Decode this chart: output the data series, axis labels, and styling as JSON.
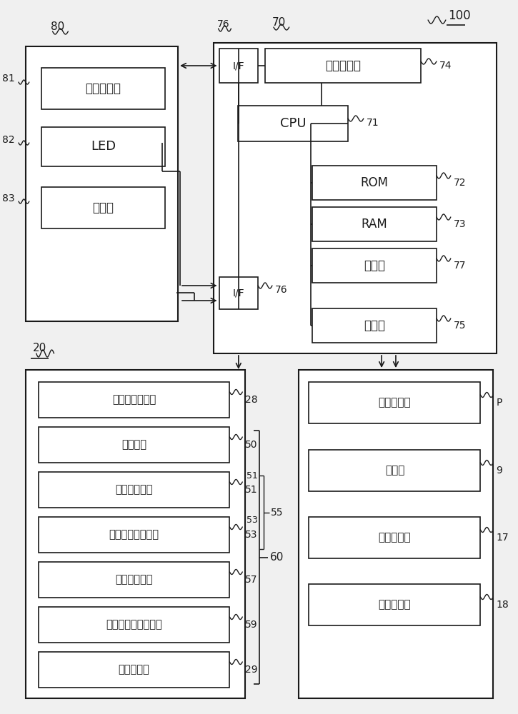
{
  "bg_color": "#f0f0f0",
  "box_color": "#ffffff",
  "box_edge": "#1a1a1a",
  "line_color": "#1a1a1a",
  "text_color": "#1a1a1a",
  "box_lcd": "液晶显示部",
  "box_led": "LED",
  "box_numkey": "数字键",
  "box_if": "I/F",
  "box_tmp": "临时存储部",
  "box_cpu": "CPU",
  "box_rom": "ROM",
  "box_ram": "RAM",
  "box_timer": "计时器",
  "box_counter": "计数器",
  "box_sensor": "纸张检测传感器",
  "box_tray": "排出托盘",
  "box_press": "纸张压下部件",
  "box_surface": "上表面检测传感器",
  "box_motor": "托盘驱动马达",
  "box_lower": "下限位置检测传感器",
  "box_roller": "第二排出辊",
  "box_imgform": "图像形成部",
  "box_fix": "定影部",
  "box_feed": "纸张输送部",
  "box_imgread": "图像读取部",
  "r80": "80",
  "r70": "70",
  "r100": "100",
  "r20": "20",
  "r81": "81",
  "r82": "82",
  "r83": "83",
  "r76": "76",
  "r74": "74",
  "r71": "71",
  "r72": "72",
  "r73": "73",
  "r77": "77",
  "r75": "75",
  "r28": "28",
  "r50": "50",
  "r51": "51",
  "r53": "53",
  "r55": "55",
  "r60": "60",
  "r57": "57",
  "r59": "59",
  "r29": "29",
  "rP": "P",
  "r9": "9",
  "r17": "17",
  "r18": "18"
}
